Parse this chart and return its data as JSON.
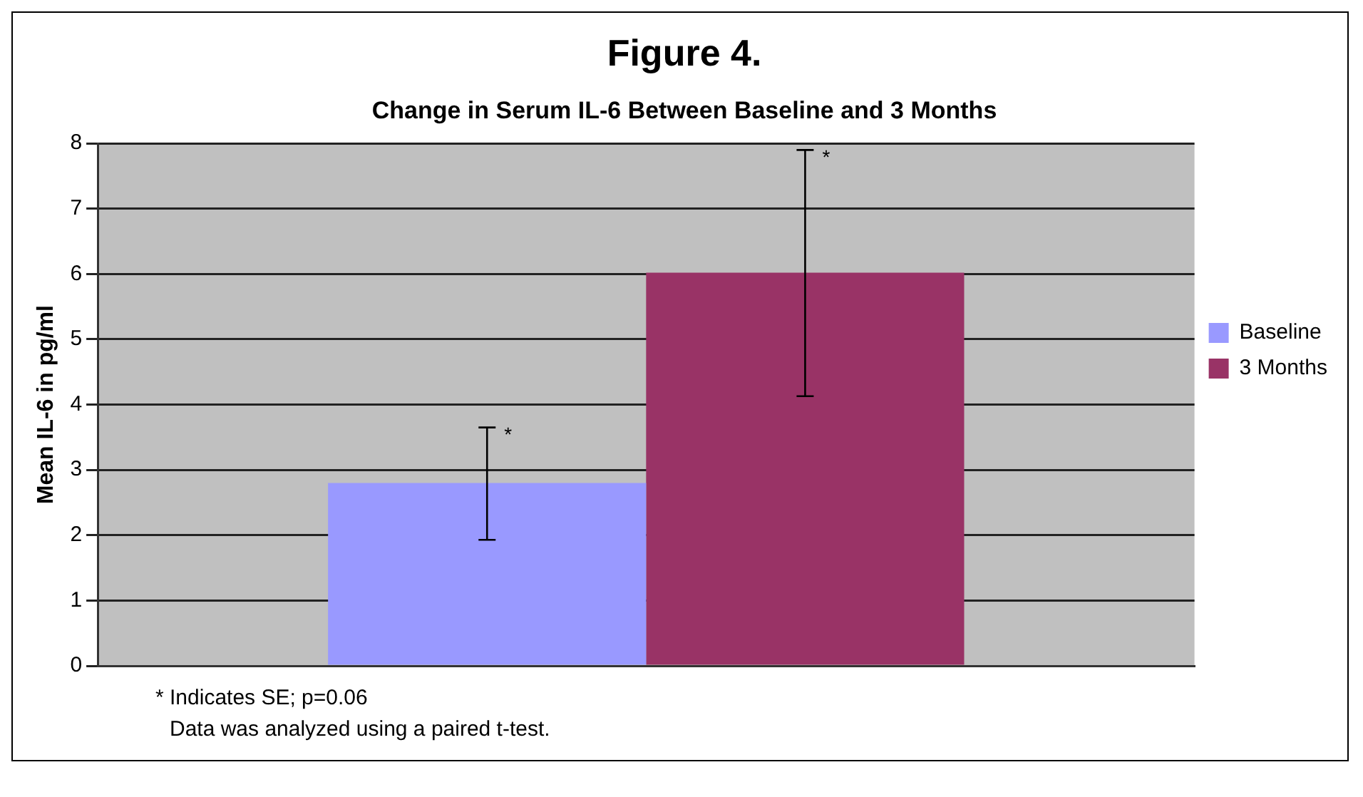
{
  "chart_data": {
    "type": "bar",
    "title": "Figure 4.",
    "subtitle": "Change in Serum IL-6 Between Baseline and 3 Months",
    "ylabel": "Mean IL-6 in pg/ml",
    "categories": [
      null
    ],
    "series": [
      {
        "name": "Baseline",
        "color": "#9999ff",
        "values": [
          2.8
        ],
        "errors": [
          [
            1.93,
            3.65
          ]
        ]
      },
      {
        "name": "3 Months",
        "color": "#993366",
        "values": [
          6.02
        ],
        "errors": [
          [
            4.13,
            7.9
          ]
        ]
      }
    ],
    "ylim": [
      0,
      8
    ],
    "yticks": [
      0,
      1,
      2,
      3,
      4,
      5,
      6,
      7,
      8
    ],
    "grid": "y",
    "legend": "right",
    "annotations": [
      "*",
      "*",
      "* Indicates SE; p=0.06",
      "Data was analyzed using a paired t-test."
    ]
  }
}
